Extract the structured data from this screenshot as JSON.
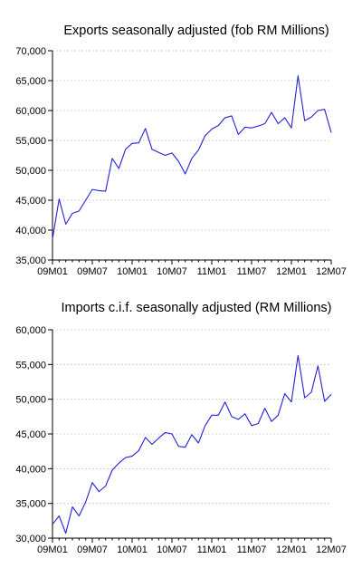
{
  "colors": {
    "line": "#2323d6",
    "grid": "#c8c8c8",
    "axis": "#000000"
  },
  "chart_data": [
    {
      "type": "line",
      "title": "Exports seasonally adjusted (fob RM Millions)",
      "xlabel": "",
      "ylabel": "",
      "grid": true,
      "ylim": [
        35000,
        70000
      ],
      "yticks": [
        35000,
        40000,
        45000,
        50000,
        55000,
        60000,
        65000,
        70000
      ],
      "ytick_labels": [
        "35,000",
        "40,000",
        "45,000",
        "50,000",
        "55,000",
        "60,000",
        "65,000",
        "70,000"
      ],
      "x_tick_labels": [
        "09M01",
        "09M07",
        "10M01",
        "10M07",
        "11M01",
        "11M07",
        "12M01",
        "12M07"
      ],
      "x_tick_index": [
        0,
        6,
        12,
        18,
        24,
        30,
        36,
        42
      ],
      "x": [
        "09M01",
        "09M02",
        "09M03",
        "09M04",
        "09M05",
        "09M06",
        "09M07",
        "09M08",
        "09M09",
        "09M10",
        "09M11",
        "09M12",
        "10M01",
        "10M02",
        "10M03",
        "10M04",
        "10M05",
        "10M06",
        "10M07",
        "10M08",
        "10M09",
        "10M10",
        "10M11",
        "10M12",
        "11M01",
        "11M02",
        "11M03",
        "11M04",
        "11M05",
        "11M06",
        "11M07",
        "11M08",
        "11M09",
        "11M10",
        "11M11",
        "11M12",
        "12M01",
        "12M02",
        "12M03",
        "12M04",
        "12M05",
        "12M06",
        "12M07"
      ],
      "series": [
        {
          "values": [
            38500,
            45200,
            41000,
            42800,
            43200,
            45000,
            46800,
            46600,
            46500,
            52000,
            50300,
            53500,
            54500,
            54600,
            57000,
            53500,
            53000,
            52500,
            52900,
            51500,
            49400,
            52000,
            53400,
            55800,
            56900,
            57500,
            58800,
            59100,
            56000,
            57200,
            57100,
            57400,
            57800,
            59700,
            57800,
            58800,
            57100,
            65800,
            58300,
            58900,
            60000,
            60200,
            56300
          ]
        }
      ]
    },
    {
      "type": "line",
      "title": "Imports c.i.f. seasonally adjusted (RM Millions)",
      "xlabel": "",
      "ylabel": "",
      "grid": true,
      "ylim": [
        30000,
        60000
      ],
      "yticks": [
        30000,
        35000,
        40000,
        45000,
        50000,
        55000,
        60000
      ],
      "ytick_labels": [
        "30,000",
        "35,000",
        "40,000",
        "45,000",
        "50,000",
        "55,000",
        "60,000"
      ],
      "x_tick_labels": [
        "09M01",
        "09M07",
        "10M01",
        "10M07",
        "11M01",
        "11M07",
        "12M01",
        "12M07"
      ],
      "x_tick_index": [
        0,
        6,
        12,
        18,
        24,
        30,
        36,
        42
      ],
      "x": [
        "09M01",
        "09M02",
        "09M03",
        "09M04",
        "09M05",
        "09M06",
        "09M07",
        "09M08",
        "09M09",
        "09M10",
        "09M11",
        "09M12",
        "10M01",
        "10M02",
        "10M03",
        "10M04",
        "10M05",
        "10M06",
        "10M07",
        "10M08",
        "10M09",
        "10M10",
        "10M11",
        "10M12",
        "11M01",
        "11M02",
        "11M03",
        "11M04",
        "11M05",
        "11M06",
        "11M07",
        "11M08",
        "11M09",
        "11M10",
        "11M11",
        "11M12",
        "12M01",
        "12M02",
        "12M03",
        "12M04",
        "12M05",
        "12M06",
        "12M07"
      ],
      "series": [
        {
          "values": [
            32000,
            33200,
            30700,
            34500,
            33200,
            35200,
            38000,
            36700,
            37500,
            39800,
            40800,
            41600,
            41800,
            42600,
            44500,
            43500,
            44400,
            45200,
            45000,
            43200,
            43100,
            44900,
            43700,
            46200,
            47700,
            47700,
            49600,
            47500,
            47100,
            47900,
            46200,
            46500,
            48700,
            46800,
            47700,
            50800,
            49600,
            56300,
            50200,
            51000,
            54800,
            49700,
            50700
          ]
        }
      ]
    }
  ]
}
